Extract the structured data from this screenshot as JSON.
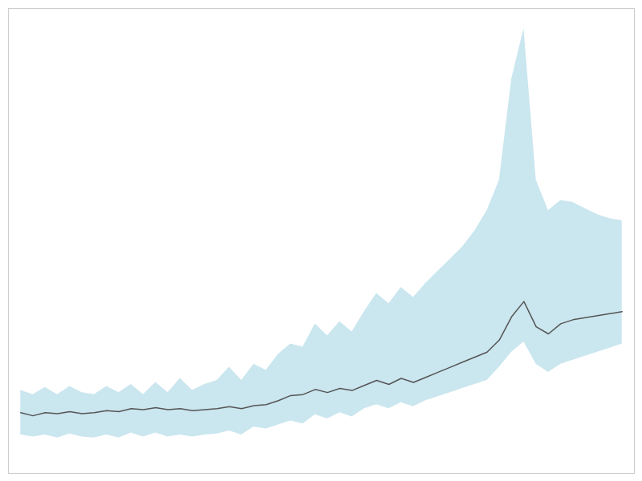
{
  "chart_data": {
    "type": "line",
    "x": [
      0,
      1,
      2,
      3,
      4,
      5,
      6,
      7,
      8,
      9,
      10,
      11,
      12,
      13,
      14,
      15,
      16,
      17,
      18,
      19,
      20,
      21,
      22,
      23,
      24,
      25,
      26,
      27,
      28,
      29,
      30,
      31,
      32,
      33,
      34,
      35,
      36,
      37,
      38,
      39,
      40,
      41,
      42,
      43,
      44,
      45,
      46,
      47,
      48,
      49
    ],
    "values": [
      100,
      97,
      100,
      99,
      101,
      99,
      100,
      102,
      101,
      104,
      103,
      105,
      103,
      104,
      102,
      103,
      104,
      106,
      104,
      107,
      108,
      112,
      117,
      118,
      123,
      120,
      124,
      122,
      127,
      132,
      128,
      134,
      130,
      135,
      140,
      145,
      150,
      155,
      160,
      172,
      195,
      210,
      185,
      178,
      188,
      192,
      194,
      196,
      198,
      200
    ],
    "color": "#555555",
    "band": {
      "upper": [
        122,
        118,
        125,
        118,
        126,
        120,
        118,
        126,
        120,
        128,
        118,
        130,
        120,
        134,
        122,
        128,
        132,
        145,
        132,
        148,
        142,
        158,
        168,
        165,
        188,
        176,
        190,
        180,
        200,
        218,
        208,
        224,
        214,
        228,
        240,
        252,
        264,
        280,
        300,
        330,
        430,
        480,
        330,
        300,
        310,
        308,
        302,
        296,
        292,
        290
      ],
      "lower": [
        78,
        76,
        78,
        75,
        79,
        76,
        75,
        78,
        75,
        80,
        76,
        80,
        76,
        78,
        76,
        78,
        79,
        82,
        78,
        86,
        84,
        88,
        92,
        89,
        98,
        94,
        100,
        96,
        104,
        108,
        104,
        110,
        106,
        112,
        116,
        120,
        124,
        128,
        132,
        145,
        160,
        170,
        148,
        140,
        148,
        152,
        156,
        160,
        164,
        168
      ],
      "color": "#add8e6"
    },
    "xlim": [
      -1,
      50
    ],
    "ylim": [
      40,
      500
    ],
    "tick_labels": false,
    "grid": false
  }
}
